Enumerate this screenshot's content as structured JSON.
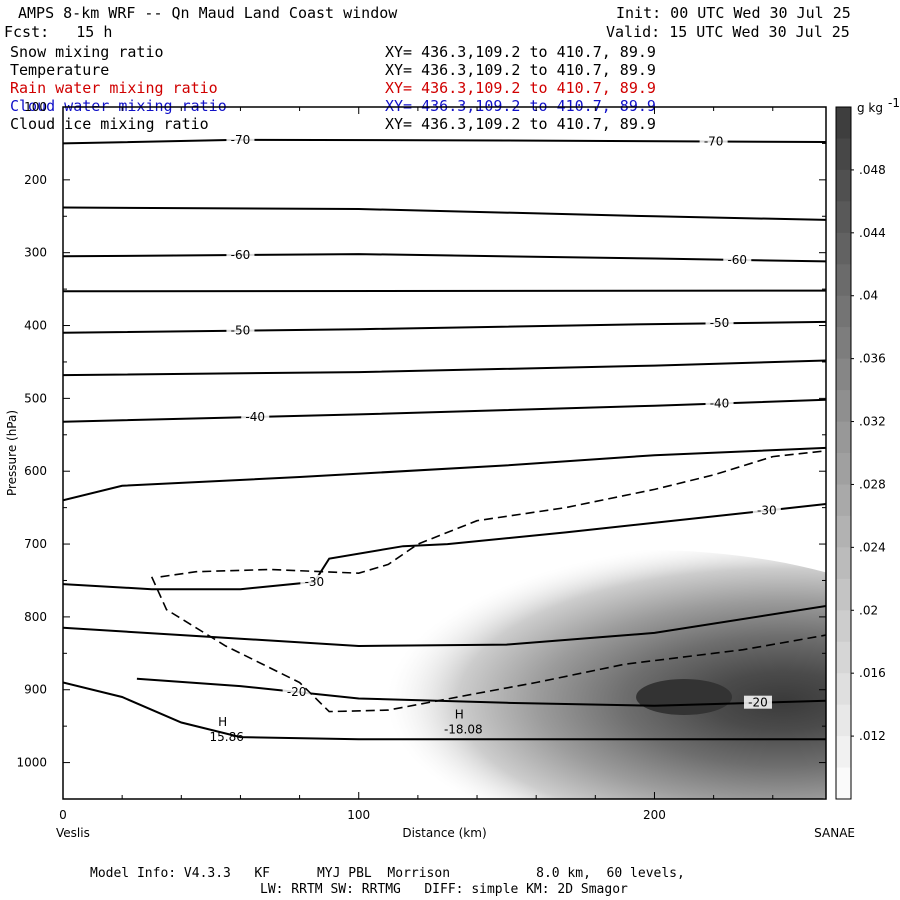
{
  "header": {
    "title": "AMPS 8-km WRF -- Qn Maud Land Coast window",
    "init": "Init: 00 UTC Wed 30 Jul 25",
    "fcst": "Fcst:   15 h",
    "valid": "Valid: 15 UTC Wed 30 Jul 25"
  },
  "fields": [
    {
      "name": "Snow mixing ratio",
      "xy": "XY= 436.3,109.2 to 410.7, 89.9",
      "color": "#000000"
    },
    {
      "name": "Temperature",
      "xy": "XY= 436.3,109.2 to 410.7, 89.9",
      "color": "#000000"
    },
    {
      "name": "Rain water mixing ratio",
      "xy": "XY= 436.3,109.2 to 410.7, 89.9",
      "color": "#d00000"
    },
    {
      "name": "Cloud water mixing ratio",
      "xy": "XY= 436.3,109.2 to 410.7, 89.9",
      "color": "#1010c8"
    },
    {
      "name": "Cloud ice mixing ratio",
      "xy": "XY= 436.3,109.2 to 410.7, 89.9",
      "color": "#000000"
    }
  ],
  "footer": {
    "line1": "Model Info: V4.3.3   KF      MYJ PBL  Morrison           8.0 km,  60 levels,",
    "line2": "LW: RRTM SW: RRTMG   DIFF: simple KM: 2D Smagor"
  },
  "chart_data": {
    "type": "heatmap",
    "xlabel": "Distance (km)",
    "ylabel": "Pressure (hPa)",
    "xlim": [
      0,
      258
    ],
    "ylim": [
      1050,
      100
    ],
    "xticks": [
      0,
      100,
      200
    ],
    "yticks": [
      100,
      200,
      300,
      400,
      500,
      600,
      700,
      800,
      900,
      1000
    ],
    "x_endpoint_labels": {
      "left": "Veslis",
      "right": "SANAE"
    },
    "colorbar": {
      "unit": "g kg",
      "unit_exponent": "-1",
      "ticks": [
        ".048",
        ".044",
        ".04",
        ".036",
        ".032",
        ".028",
        ".024",
        ".02",
        ".016",
        ".012"
      ],
      "range": [
        0.008,
        0.052
      ]
    },
    "snow_max": {
      "x": 210,
      "p": 910,
      "value": 0.05
    },
    "temperature_contours": [
      {
        "label": "-70",
        "points": [
          [
            0,
            150
          ],
          [
            60,
            145
          ],
          [
            150,
            146
          ],
          [
            258,
            148
          ]
        ],
        "labels_at": [
          60,
          220
        ]
      },
      {
        "label": "",
        "points": [
          [
            0,
            238
          ],
          [
            100,
            240
          ],
          [
            200,
            250
          ],
          [
            258,
            255
          ]
        ]
      },
      {
        "label": "-60",
        "points": [
          [
            0,
            305
          ],
          [
            100,
            302
          ],
          [
            200,
            308
          ],
          [
            258,
            312
          ]
        ],
        "labels_at": [
          60,
          228
        ]
      },
      {
        "label": "",
        "points": [
          [
            0,
            353
          ],
          [
            258,
            352
          ]
        ]
      },
      {
        "label": "-50",
        "points": [
          [
            0,
            410
          ],
          [
            100,
            405
          ],
          [
            200,
            398
          ],
          [
            258,
            395
          ]
        ],
        "labels_at": [
          60,
          222
        ]
      },
      {
        "label": "",
        "points": [
          [
            0,
            468
          ],
          [
            100,
            464
          ],
          [
            200,
            455
          ],
          [
            258,
            448
          ]
        ]
      },
      {
        "label": "-40",
        "points": [
          [
            0,
            532
          ],
          [
            100,
            522
          ],
          [
            200,
            510
          ],
          [
            258,
            502
          ]
        ],
        "labels_at": [
          65,
          222
        ]
      },
      {
        "label": "",
        "points": [
          [
            0,
            640
          ],
          [
            20,
            620
          ],
          [
            80,
            608
          ],
          [
            150,
            592
          ],
          [
            200,
            578
          ],
          [
            258,
            568
          ]
        ]
      },
      {
        "label": "-30",
        "points": [
          [
            0,
            755
          ],
          [
            30,
            762
          ],
          [
            60,
            762
          ],
          [
            85,
            752
          ],
          [
            90,
            720
          ],
          [
            115,
            703
          ],
          [
            130,
            700
          ],
          [
            170,
            684
          ],
          [
            220,
            662
          ],
          [
            258,
            645
          ]
        ],
        "labels_at": [
          85,
          238
        ]
      },
      {
        "label": "",
        "points": [
          [
            0,
            815
          ],
          [
            60,
            830
          ],
          [
            100,
            840
          ],
          [
            150,
            838
          ],
          [
            200,
            822
          ],
          [
            258,
            785
          ]
        ]
      },
      {
        "label": "-20",
        "points": [
          [
            25,
            885
          ],
          [
            60,
            895
          ],
          [
            100,
            912
          ],
          [
            150,
            918
          ],
          [
            200,
            922
          ],
          [
            258,
            915
          ]
        ],
        "labels_at": [
          79,
          235
        ]
      },
      {
        "label": "",
        "points": [
          [
            0,
            890
          ],
          [
            20,
            910
          ],
          [
            40,
            945
          ],
          [
            60,
            965
          ],
          [
            100,
            968
          ],
          [
            200,
            968
          ],
          [
            258,
            968
          ]
        ]
      }
    ],
    "dashed_contours": [
      {
        "points": [
          [
            30,
            745
          ],
          [
            35,
            790
          ],
          [
            55,
            840
          ],
          [
            80,
            890
          ],
          [
            90,
            930
          ],
          [
            110,
            928
          ],
          [
            140,
            905
          ],
          [
            160,
            890
          ],
          [
            190,
            865
          ],
          [
            230,
            845
          ],
          [
            258,
            825
          ]
        ]
      },
      {
        "points": [
          [
            33,
            745
          ],
          [
            45,
            738
          ],
          [
            70,
            735
          ],
          [
            100,
            740
          ],
          [
            110,
            728
          ],
          [
            120,
            700
          ],
          [
            140,
            668
          ],
          [
            170,
            650
          ],
          [
            200,
            625
          ],
          [
            220,
            605
          ],
          [
            240,
            580
          ],
          [
            258,
            572
          ]
        ]
      }
    ],
    "annotations": [
      {
        "label": "H",
        "value": "15.86",
        "x": 54,
        "p": 955
      },
      {
        "label": "H",
        "value": "-18.08",
        "x": 134,
        "p": 945
      }
    ]
  }
}
